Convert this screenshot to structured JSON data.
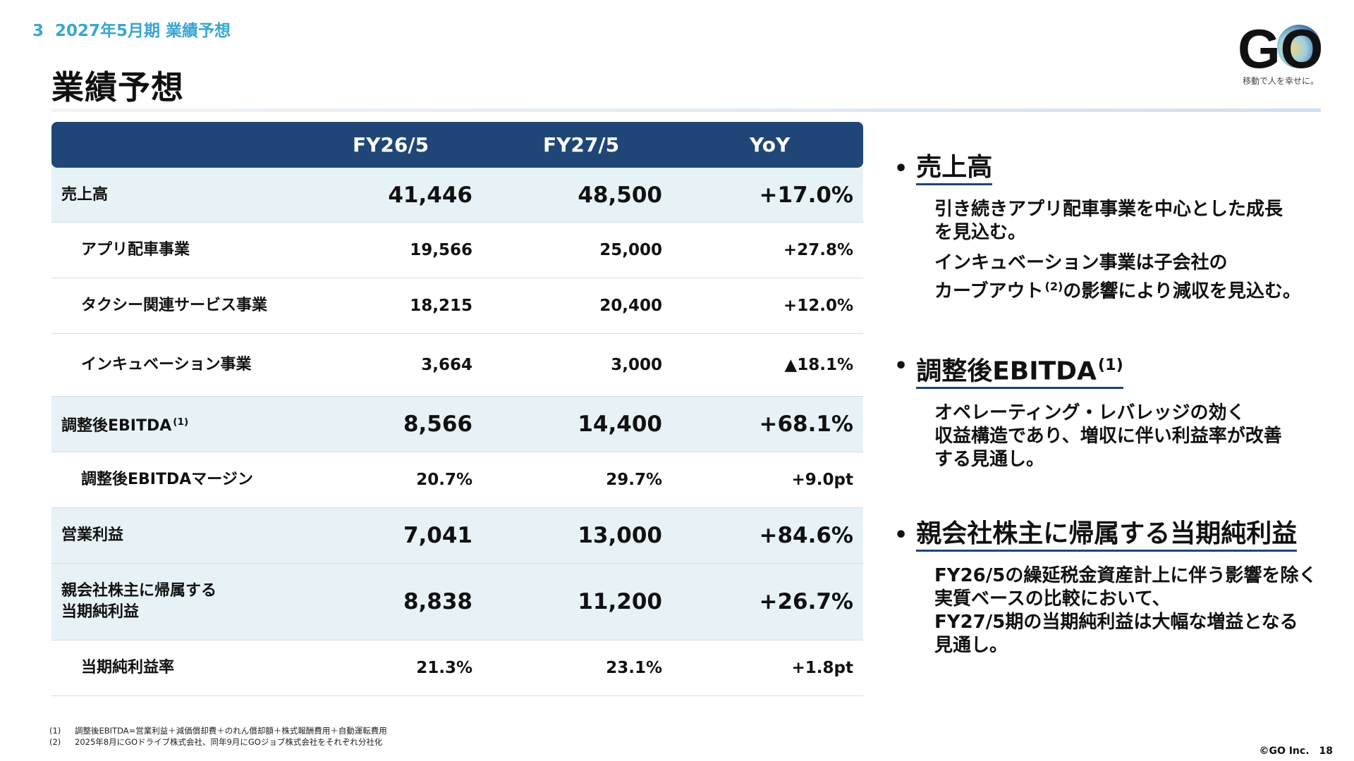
{
  "header": {
    "section_number": "3",
    "section_title": "2027年5月期 業績予想",
    "page_title": "業績予想"
  },
  "logo": {
    "text": "GO",
    "tagline": "移動で人を幸せに。"
  },
  "table": {
    "columns": [
      "FY26/5",
      "FY27/5",
      "YoY"
    ],
    "rows": [
      {
        "label": "売上高",
        "footnote": "",
        "fy26": "41,446",
        "fy27": "48,500",
        "yoy": "+17.0%",
        "type": "main"
      },
      {
        "label": "アプリ配車事業",
        "footnote": "",
        "fy26": "19,566",
        "fy27": "25,000",
        "yoy": "+27.8%",
        "type": "sub"
      },
      {
        "label": "タクシー関連サービス事業",
        "footnote": "",
        "fy26": "18,215",
        "fy27": "20,400",
        "yoy": "+12.0%",
        "type": "sub"
      },
      {
        "label": "インキュベーション事業",
        "footnote": "",
        "fy26": "3,664",
        "fy27": "3,000",
        "yoy": "▲18.1%",
        "type": "sub"
      },
      {
        "label": "調整後EBITDA",
        "footnote": "(1)",
        "fy26": "8,566",
        "fy27": "14,400",
        "yoy": "+68.1%",
        "type": "main"
      },
      {
        "label": "調整後EBITDAマージン",
        "footnote": "",
        "fy26": "20.7%",
        "fy27": "29.7%",
        "yoy": "+9.0pt",
        "type": "sub"
      },
      {
        "label": "営業利益",
        "footnote": "",
        "fy26": "7,041",
        "fy27": "13,000",
        "yoy": "+84.6%",
        "type": "main"
      },
      {
        "label": "親会社株主に帰属する\n当期純利益",
        "footnote": "",
        "fy26": "8,838",
        "fy27": "11,200",
        "yoy": "+26.7%",
        "type": "main"
      },
      {
        "label": "当期純利益率",
        "footnote": "",
        "fy26": "21.3%",
        "fy27": "23.1%",
        "yoy": "+1.8pt",
        "type": "sub"
      }
    ]
  },
  "bullets": [
    {
      "title": "売上高",
      "footnote": "",
      "paragraphs": [
        [
          "引き続きアプリ配車事業を中心とした成長",
          "を見込む。"
        ],
        [
          "インキュベーション事業は子会社の",
          "カーブアウト(2)の影響により減収を見込む。"
        ]
      ]
    },
    {
      "title": "調整後EBITDA",
      "footnote": "(1)",
      "paragraphs": [
        [
          "オペレーティング・レバレッジの効く",
          "収益構造であり、増収に伴い利益率が改善",
          "する見通し。"
        ]
      ]
    },
    {
      "title": "親会社株主に帰属する当期純利益",
      "footnote": "",
      "paragraphs": [
        [
          "FY26/5の繰延税金資産計上に伴う影響を除く",
          "実質ベースの比較において、",
          "FY27/5期の当期純利益は大幅な増益となる",
          "見通し。"
        ]
      ]
    }
  ],
  "footnotes": [
    {
      "mark": "(1)",
      "text": "調整後EBITDA=営業利益＋減価償却費＋のれん償却額＋株式報酬費用＋自動運転費用"
    },
    {
      "mark": "(2)",
      "text": "2025年8月にGOドライブ株式会社、同年9月にGOジョブ株式会社をそれぞれ分社化"
    }
  ],
  "footer": {
    "copyright": "©GO Inc.",
    "page_number": "18"
  },
  "colors": {
    "accent": "#3aa6cf",
    "header_navy": "#1f4677",
    "row_highlight": "#e7f2f7"
  }
}
